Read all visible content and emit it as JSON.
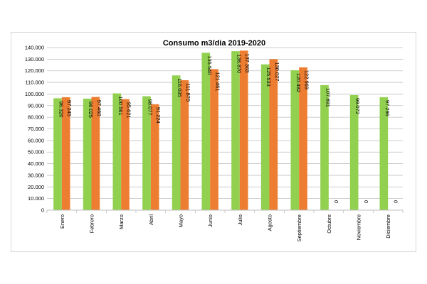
{
  "chart_data": {
    "type": "bar",
    "title": "Consumo m3/dia 2019-2020",
    "categories": [
      "Enero",
      "Febrero",
      "Marzo",
      "Abril",
      "Mayo",
      "Junio",
      "Julio",
      "Agosto",
      "Septiembre",
      "Octubre",
      "Noviembre",
      "Diciembre"
    ],
    "series": [
      {
        "values": [
          96320,
          96025,
          100561,
          98077,
          116035,
          135540,
          136870,
          125533,
          120482,
          107691,
          99072,
          97296
        ],
        "labels": [
          "96.320",
          "96.025",
          "100.561",
          "98.077",
          "116.035",
          "135.540",
          "136.870",
          "125.533",
          "120.482",
          "107.691",
          "99.072",
          "97.296"
        ],
        "color": "#92d050"
      },
      {
        "values": [
          97245,
          97460,
          95621,
          91224,
          111879,
          121461,
          137363,
          130027,
          122969,
          0,
          0,
          0
        ],
        "labels": [
          "97.245",
          "97.460",
          "95.621",
          "91.224",
          "111.879",
          "121.461",
          "137.363",
          "130.027",
          "122.969",
          "0",
          "0",
          "0"
        ],
        "color": "#ed7d31"
      }
    ],
    "ylim": [
      0,
      140000
    ],
    "yticks": [
      "0",
      "10.000",
      "20.000",
      "30.000",
      "40.000",
      "50.000",
      "60.000",
      "70.000",
      "80.000",
      "90.000",
      "100.000",
      "110.000",
      "120.000",
      "130.000",
      "140.000"
    ],
    "grid": true,
    "gridline_color": "#bfbfbf"
  }
}
